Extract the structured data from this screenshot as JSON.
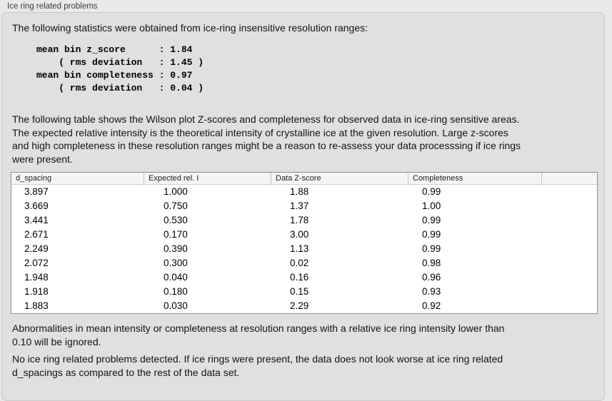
{
  "panel": {
    "title": "Ice ring related problems"
  },
  "intro": {
    "text": "The following statistics were obtained from ice-ring insensitive resolution ranges:"
  },
  "stats": {
    "lines": [
      "mean bin z_score      : 1.84",
      "    ( rms deviation   : 1.45 )",
      "mean bin completeness : 0.97",
      "    ( rms deviation   : 0.04 )"
    ],
    "mean_bin_z_score": 1.84,
    "z_score_rms_deviation": 1.45,
    "mean_bin_completeness": 0.97,
    "completeness_rms_deviation": 0.04
  },
  "description": {
    "lines": [
      "The following table shows the Wilson plot Z-scores and completeness for observed data in ice-ring sensitive areas.",
      "The expected relative intensity is the theoretical intensity of crystalline ice at the given resolution. Large z-scores",
      "and high completeness in these resolution ranges might be a reason to re-assess your data processsing if ice rings",
      "were present."
    ]
  },
  "table": {
    "columns": [
      "d_spacing",
      "Expected rel. I",
      "Data Z-score",
      "Completeness"
    ],
    "rows": [
      [
        "3.897",
        "1.000",
        "1.88",
        "0.99"
      ],
      [
        "3.669",
        "0.750",
        "1.37",
        "1.00"
      ],
      [
        "3.441",
        "0.530",
        "1.78",
        "0.99"
      ],
      [
        "2.671",
        "0.170",
        "3.00",
        "0.99"
      ],
      [
        "2.249",
        "0.390",
        "1.13",
        "0.99"
      ],
      [
        "2.072",
        "0.300",
        "0.02",
        "0.98"
      ],
      [
        "1.948",
        "0.040",
        "0.16",
        "0.96"
      ],
      [
        "1.918",
        "0.180",
        "0.15",
        "0.93"
      ],
      [
        "1.883",
        "0.030",
        "2.29",
        "0.92"
      ]
    ]
  },
  "note": {
    "lines": [
      "Abnormalities in mean intensity or completeness at resolution ranges with a relative ice ring intensity lower than",
      "0.10 will be ignored."
    ]
  },
  "conclusion": {
    "lines": [
      "No ice ring related problems detected. If ice rings were present, the data does not look worse at ice ring related",
      "d_spacings as compared to the rest of the data set."
    ]
  },
  "colors": {
    "window_bg": "#e9e9e9",
    "panel_bg": "#e0e0e0",
    "panel_border": "#c9c9c9",
    "table_bg": "#ffffff",
    "table_border": "#8f8f8f",
    "header_bg": "#f5f5f5"
  }
}
